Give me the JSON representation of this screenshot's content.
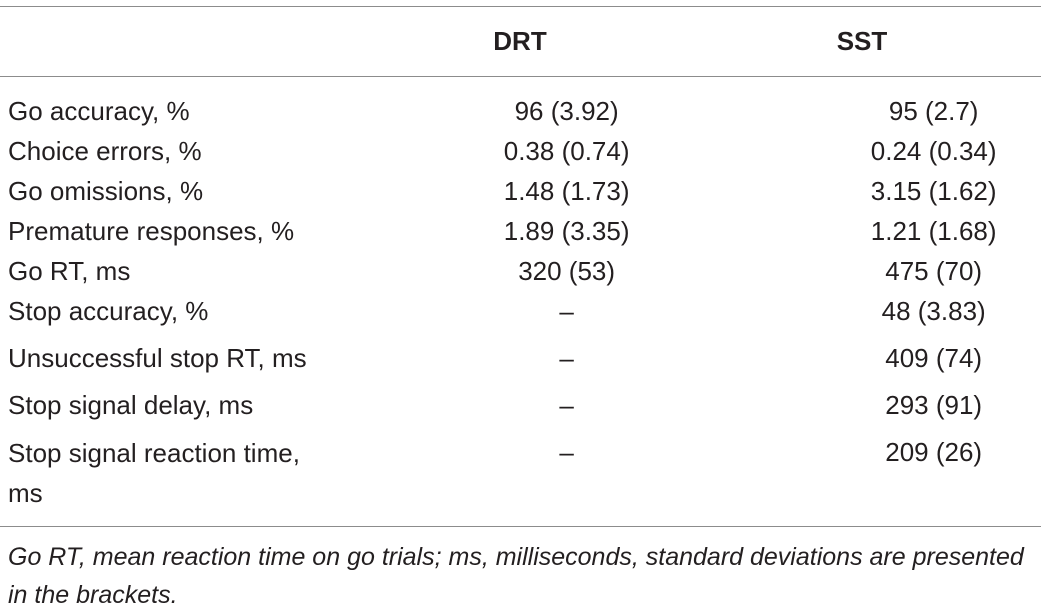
{
  "table": {
    "columns": [
      "DRT",
      "SST"
    ],
    "rows": [
      {
        "label": "Go accuracy, %",
        "drt": "96 (3.92)",
        "sst": "95 (2.7)"
      },
      {
        "label": "Choice errors, %",
        "drt": "0.38 (0.74)",
        "sst": "0.24 (0.34)"
      },
      {
        "label": "Go omissions, %",
        "drt": "1.48 (1.73)",
        "sst": "3.15 (1.62)"
      },
      {
        "label": "Premature responses, %",
        "drt": "1.89 (3.35)",
        "sst": "1.21 (1.68)"
      },
      {
        "label": "Go RT, ms",
        "drt": "320 (53)",
        "sst": "475 (70)"
      },
      {
        "label": "Stop accuracy, %",
        "drt": "–",
        "sst": "48 (3.83)"
      },
      {
        "label": "Unsuccessful stop RT, ms",
        "drt": "–",
        "sst": "409 (74)"
      },
      {
        "label": "Stop signal delay, ms",
        "drt": "–",
        "sst": "293 (91)"
      },
      {
        "label": "Stop signal reaction time, ms",
        "drt": "–",
        "sst": "209 (26)"
      }
    ],
    "footnote": "Go RT, mean reaction time on go trials; ms, milliseconds, standard deviations are presented in the brackets."
  }
}
